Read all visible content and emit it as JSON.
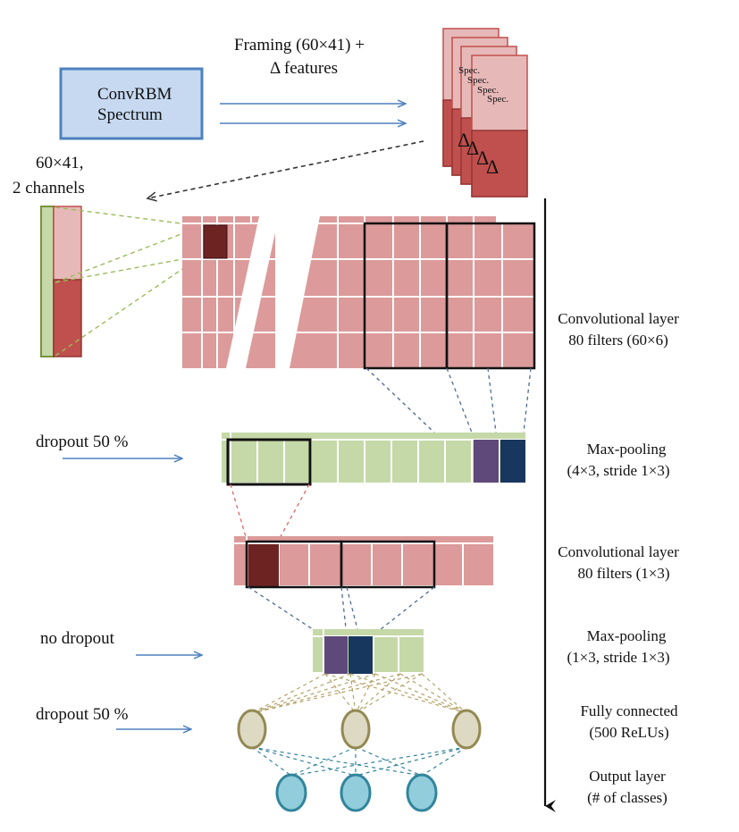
{
  "input_box": {
    "line1": "ConvRBM",
    "line2": "Spectrum"
  },
  "framing": {
    "line1": "Framing (60×41) +",
    "line2": "Δ features"
  },
  "frame_stack": {
    "spec_label": "Spec.",
    "delta_glyph": "Δ",
    "frame_count": 4
  },
  "input_shape": {
    "line1": "60×41,",
    "line2": "2 channels"
  },
  "left_labels": {
    "dropout1": "dropout 50 %",
    "nodropout": "no dropout",
    "dropout2": "dropout 50 %"
  },
  "layers": [
    {
      "line1": "Convolutional layer",
      "line2": "80 filters (60×6)"
    },
    {
      "line1": "Max-pooling",
      "line2": "(4×3, stride 1×3)"
    },
    {
      "line1": "Convolutional layer",
      "line2": "80 filters (1×3)"
    },
    {
      "line1": "Max-pooling",
      "line2": "(1×3, stride 1×3)"
    },
    {
      "line1": "Fully connected",
      "line2": "(500 ReLUs)"
    },
    {
      "line1": "Output layer",
      "line2": "(# of classes)"
    }
  ],
  "colors": {
    "pink": "#dc9a9a",
    "dark_red": "#c0504d",
    "maroon": "#6e2323",
    "green": "#c5d9a8",
    "purple": "#5f497a",
    "navy": "#17375e",
    "blue_box": "#c6d9f1",
    "blue_border": "#4f81bd",
    "fc_node": "#ddd9c3",
    "out_node": "#92cddc"
  }
}
